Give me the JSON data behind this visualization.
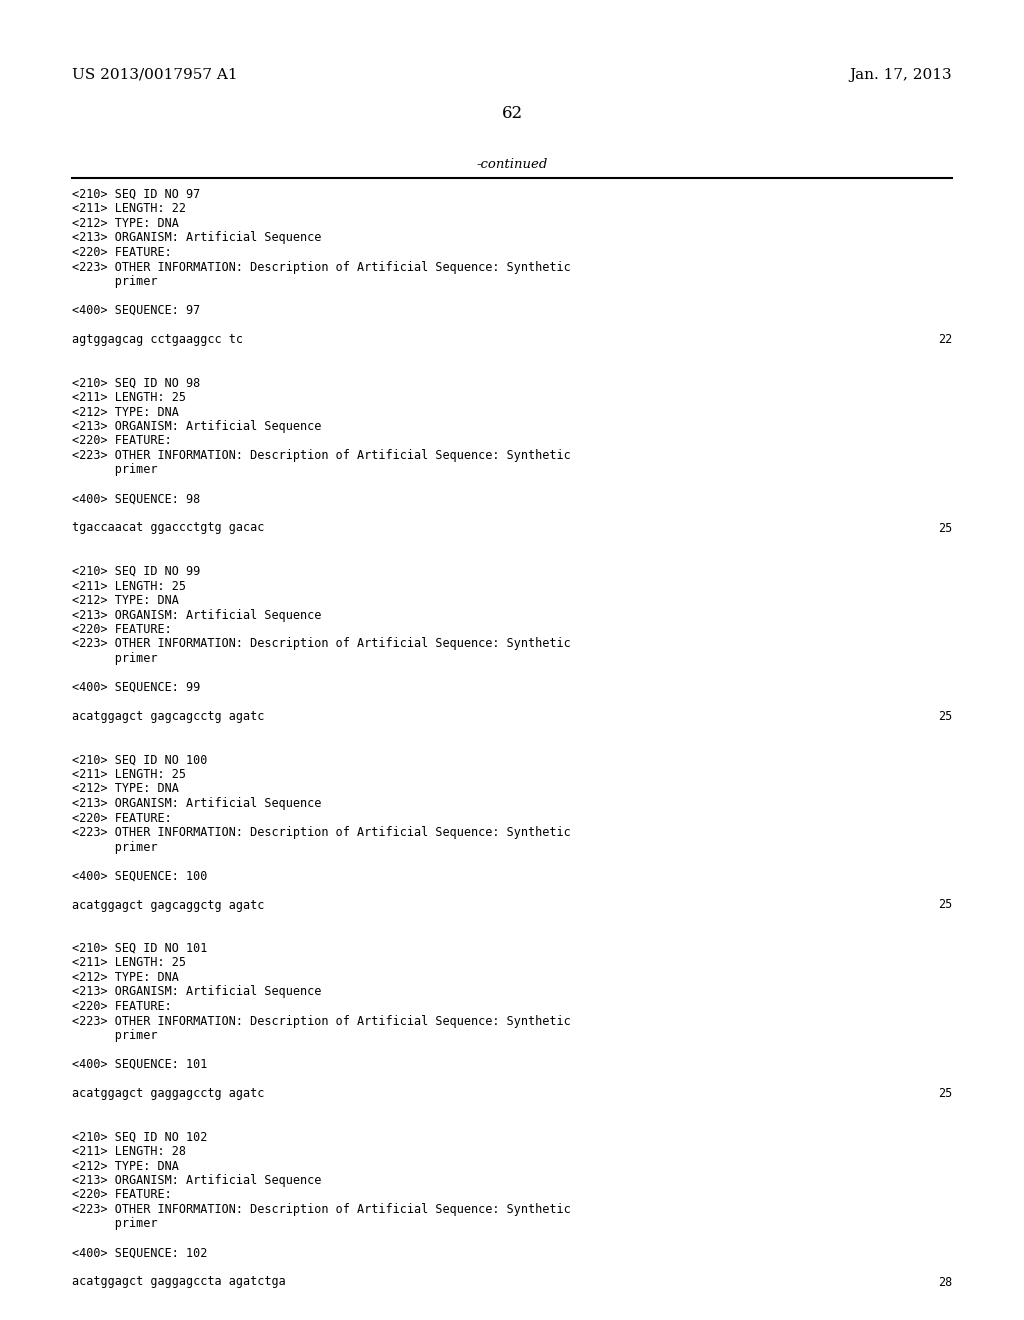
{
  "background_color": "#ffffff",
  "top_left_text": "US 2013/0017957 A1",
  "top_right_text": "Jan. 17, 2013",
  "page_number": "62",
  "continued_text": "-continued",
  "content_lines": [
    {
      "text": "<210> SEQ ID NO 97",
      "type": "meta"
    },
    {
      "text": "<211> LENGTH: 22",
      "type": "meta"
    },
    {
      "text": "<212> TYPE: DNA",
      "type": "meta"
    },
    {
      "text": "<213> ORGANISM: Artificial Sequence",
      "type": "meta"
    },
    {
      "text": "<220> FEATURE:",
      "type": "meta"
    },
    {
      "text": "<223> OTHER INFORMATION: Description of Artificial Sequence: Synthetic",
      "type": "meta"
    },
    {
      "text": "      primer",
      "type": "meta"
    },
    {
      "text": "",
      "type": "blank"
    },
    {
      "text": "<400> SEQUENCE: 97",
      "type": "meta"
    },
    {
      "text": "",
      "type": "blank"
    },
    {
      "text": "agtggagcag cctgaaggcc tc",
      "type": "seq",
      "num": "22"
    },
    {
      "text": "",
      "type": "blank"
    },
    {
      "text": "",
      "type": "blank"
    },
    {
      "text": "<210> SEQ ID NO 98",
      "type": "meta"
    },
    {
      "text": "<211> LENGTH: 25",
      "type": "meta"
    },
    {
      "text": "<212> TYPE: DNA",
      "type": "meta"
    },
    {
      "text": "<213> ORGANISM: Artificial Sequence",
      "type": "meta"
    },
    {
      "text": "<220> FEATURE:",
      "type": "meta"
    },
    {
      "text": "<223> OTHER INFORMATION: Description of Artificial Sequence: Synthetic",
      "type": "meta"
    },
    {
      "text": "      primer",
      "type": "meta"
    },
    {
      "text": "",
      "type": "blank"
    },
    {
      "text": "<400> SEQUENCE: 98",
      "type": "meta"
    },
    {
      "text": "",
      "type": "blank"
    },
    {
      "text": "tgaccaacat ggaccctgtg gacac",
      "type": "seq",
      "num": "25"
    },
    {
      "text": "",
      "type": "blank"
    },
    {
      "text": "",
      "type": "blank"
    },
    {
      "text": "<210> SEQ ID NO 99",
      "type": "meta"
    },
    {
      "text": "<211> LENGTH: 25",
      "type": "meta"
    },
    {
      "text": "<212> TYPE: DNA",
      "type": "meta"
    },
    {
      "text": "<213> ORGANISM: Artificial Sequence",
      "type": "meta"
    },
    {
      "text": "<220> FEATURE:",
      "type": "meta"
    },
    {
      "text": "<223> OTHER INFORMATION: Description of Artificial Sequence: Synthetic",
      "type": "meta"
    },
    {
      "text": "      primer",
      "type": "meta"
    },
    {
      "text": "",
      "type": "blank"
    },
    {
      "text": "<400> SEQUENCE: 99",
      "type": "meta"
    },
    {
      "text": "",
      "type": "blank"
    },
    {
      "text": "acatggagct gagcagcctg agatc",
      "type": "seq",
      "num": "25"
    },
    {
      "text": "",
      "type": "blank"
    },
    {
      "text": "",
      "type": "blank"
    },
    {
      "text": "<210> SEQ ID NO 100",
      "type": "meta"
    },
    {
      "text": "<211> LENGTH: 25",
      "type": "meta"
    },
    {
      "text": "<212> TYPE: DNA",
      "type": "meta"
    },
    {
      "text": "<213> ORGANISM: Artificial Sequence",
      "type": "meta"
    },
    {
      "text": "<220> FEATURE:",
      "type": "meta"
    },
    {
      "text": "<223> OTHER INFORMATION: Description of Artificial Sequence: Synthetic",
      "type": "meta"
    },
    {
      "text": "      primer",
      "type": "meta"
    },
    {
      "text": "",
      "type": "blank"
    },
    {
      "text": "<400> SEQUENCE: 100",
      "type": "meta"
    },
    {
      "text": "",
      "type": "blank"
    },
    {
      "text": "acatggagct gagcaggctg agatc",
      "type": "seq",
      "num": "25"
    },
    {
      "text": "",
      "type": "blank"
    },
    {
      "text": "",
      "type": "blank"
    },
    {
      "text": "<210> SEQ ID NO 101",
      "type": "meta"
    },
    {
      "text": "<211> LENGTH: 25",
      "type": "meta"
    },
    {
      "text": "<212> TYPE: DNA",
      "type": "meta"
    },
    {
      "text": "<213> ORGANISM: Artificial Sequence",
      "type": "meta"
    },
    {
      "text": "<220> FEATURE:",
      "type": "meta"
    },
    {
      "text": "<223> OTHER INFORMATION: Description of Artificial Sequence: Synthetic",
      "type": "meta"
    },
    {
      "text": "      primer",
      "type": "meta"
    },
    {
      "text": "",
      "type": "blank"
    },
    {
      "text": "<400> SEQUENCE: 101",
      "type": "meta"
    },
    {
      "text": "",
      "type": "blank"
    },
    {
      "text": "acatggagct gaggagcctg agatc",
      "type": "seq",
      "num": "25"
    },
    {
      "text": "",
      "type": "blank"
    },
    {
      "text": "",
      "type": "blank"
    },
    {
      "text": "<210> SEQ ID NO 102",
      "type": "meta"
    },
    {
      "text": "<211> LENGTH: 28",
      "type": "meta"
    },
    {
      "text": "<212> TYPE: DNA",
      "type": "meta"
    },
    {
      "text": "<213> ORGANISM: Artificial Sequence",
      "type": "meta"
    },
    {
      "text": "<220> FEATURE:",
      "type": "meta"
    },
    {
      "text": "<223> OTHER INFORMATION: Description of Artificial Sequence: Synthetic",
      "type": "meta"
    },
    {
      "text": "      primer",
      "type": "meta"
    },
    {
      "text": "",
      "type": "blank"
    },
    {
      "text": "<400> SEQUENCE: 102",
      "type": "meta"
    },
    {
      "text": "",
      "type": "blank"
    },
    {
      "text": "acatggagct gaggagccta agatctga",
      "type": "seq",
      "num": "28"
    }
  ]
}
